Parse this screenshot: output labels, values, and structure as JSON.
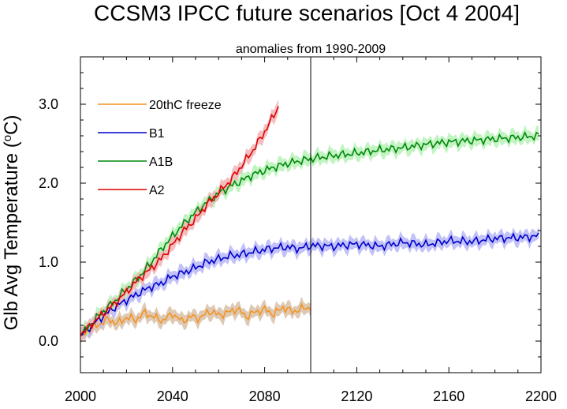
{
  "chart_data": {
    "type": "line",
    "title": "CCSM3 IPCC future scenarios [Oct  4 2004]",
    "subtitle": "anomalies from 1990-2009",
    "ylabel": "Glb Avg Temperature (",
    "ylabel_sup": "o",
    "ylabel_end": "C)",
    "xlim": [
      2000,
      2200
    ],
    "ylim": [
      -0.4,
      3.6
    ],
    "x_ticks": [
      2000,
      2040,
      2080,
      2120,
      2160,
      2200
    ],
    "x_tick_labels": [
      "2000",
      "2040",
      "2080",
      "2120",
      "2160",
      "2200"
    ],
    "y_ticks": [
      0.0,
      1.0,
      2.0,
      3.0
    ],
    "y_tick_labels": [
      "0.0",
      "1.0",
      "2.0",
      "3.0"
    ],
    "vertical_line_x": 2100,
    "legend_position": "upper-left",
    "series": [
      {
        "name": "20thC freeze",
        "color": "#f39422",
        "band_color": "#d8bfa8",
        "x": [
          2000,
          2004,
          2008,
          2012,
          2016,
          2020,
          2024,
          2028,
          2032,
          2036,
          2040,
          2044,
          2048,
          2052,
          2056,
          2060,
          2064,
          2068,
          2072,
          2076,
          2080,
          2084,
          2088,
          2092,
          2096,
          2100
        ],
        "values": [
          0.06,
          0.15,
          0.21,
          0.28,
          0.22,
          0.3,
          0.27,
          0.36,
          0.3,
          0.26,
          0.35,
          0.25,
          0.31,
          0.29,
          0.38,
          0.33,
          0.36,
          0.41,
          0.31,
          0.37,
          0.4,
          0.34,
          0.43,
          0.37,
          0.41,
          0.43
        ]
      },
      {
        "name": "B1",
        "color": "#0000cc",
        "band_color": "#b7b7f7",
        "x": [
          2000,
          2005,
          2010,
          2015,
          2020,
          2025,
          2030,
          2035,
          2040,
          2045,
          2050,
          2055,
          2060,
          2065,
          2070,
          2075,
          2080,
          2085,
          2090,
          2095,
          2100,
          2110,
          2120,
          2130,
          2140,
          2150,
          2160,
          2170,
          2180,
          2190,
          2199
        ],
        "values": [
          0.07,
          0.2,
          0.32,
          0.43,
          0.52,
          0.6,
          0.68,
          0.73,
          0.82,
          0.87,
          0.93,
          1.0,
          1.04,
          1.08,
          1.1,
          1.13,
          1.16,
          1.18,
          1.19,
          1.17,
          1.21,
          1.2,
          1.23,
          1.2,
          1.25,
          1.22,
          1.27,
          1.26,
          1.3,
          1.31,
          1.33
        ]
      },
      {
        "name": "A1B",
        "color": "#00880b",
        "band_color": "#b6f2b6",
        "x": [
          2000,
          2005,
          2010,
          2015,
          2020,
          2025,
          2030,
          2035,
          2040,
          2045,
          2050,
          2055,
          2060,
          2065,
          2070,
          2075,
          2080,
          2085,
          2090,
          2095,
          2100,
          2110,
          2120,
          2130,
          2140,
          2150,
          2160,
          2170,
          2180,
          2190,
          2199
        ],
        "values": [
          0.07,
          0.23,
          0.38,
          0.51,
          0.66,
          0.8,
          0.97,
          1.16,
          1.33,
          1.49,
          1.63,
          1.76,
          1.87,
          1.96,
          2.03,
          2.11,
          2.16,
          2.21,
          2.25,
          2.28,
          2.31,
          2.35,
          2.38,
          2.42,
          2.45,
          2.49,
          2.52,
          2.54,
          2.56,
          2.58,
          2.6
        ]
      },
      {
        "name": "A2",
        "color": "#e00000",
        "band_color": "#f2b3b5",
        "x": [
          2000,
          2005,
          2010,
          2015,
          2020,
          2025,
          2030,
          2035,
          2040,
          2045,
          2050,
          2055,
          2060,
          2065,
          2070,
          2075,
          2080,
          2086
        ],
        "values": [
          0.07,
          0.22,
          0.35,
          0.48,
          0.62,
          0.78,
          0.9,
          1.04,
          1.22,
          1.4,
          1.55,
          1.73,
          1.88,
          2.03,
          2.22,
          2.42,
          2.65,
          2.97
        ]
      }
    ]
  }
}
